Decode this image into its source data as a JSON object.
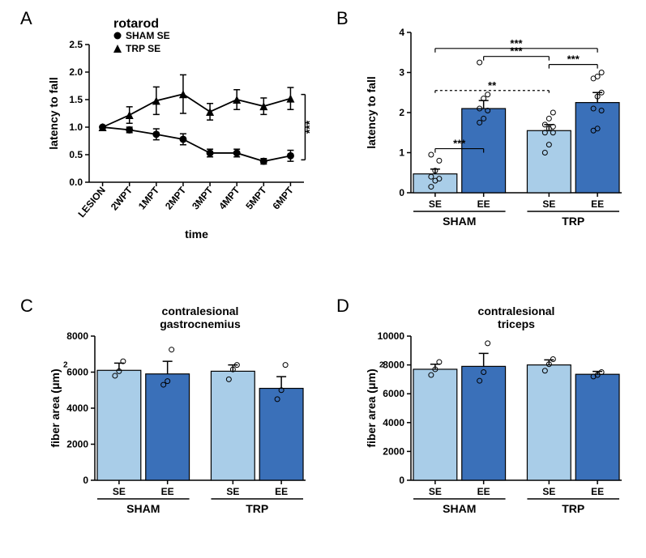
{
  "colors": {
    "se_fill": "#a9cde8",
    "ee_fill": "#3a70b9",
    "axis": "#000000",
    "bg": "#ffffff",
    "scatter": "#333333"
  },
  "panelA": {
    "label": "A",
    "title": "rotarod",
    "xlabel": "time",
    "ylabel": "latency to fall",
    "legend": [
      "SHAM SE",
      "TRP SE"
    ],
    "ylim": [
      0,
      2.5
    ],
    "ytick_step": 0.5,
    "x_categories": [
      "LESION",
      "2WPT",
      "1MPT",
      "2MPT",
      "3MPT",
      "4MPT",
      "5MPT",
      "6MPT"
    ],
    "series": [
      {
        "name": "SHAM SE",
        "marker": "circle",
        "y": [
          1.0,
          0.95,
          0.87,
          0.78,
          0.53,
          0.53,
          0.38,
          0.48
        ],
        "err": [
          0,
          0.05,
          0.1,
          0.1,
          0.07,
          0.07,
          0.05,
          0.1
        ]
      },
      {
        "name": "TRP SE",
        "marker": "triangle",
        "y": [
          1.0,
          1.22,
          1.48,
          1.6,
          1.28,
          1.5,
          1.38,
          1.52
        ],
        "err": [
          0,
          0.15,
          0.25,
          0.35,
          0.15,
          0.18,
          0.15,
          0.2
        ]
      }
    ],
    "sig": {
      "label": "***"
    },
    "title_fontsize": 16,
    "label_fontsize": 14,
    "tick_fontsize": 12
  },
  "panelB": {
    "label": "B",
    "xlabel_groups": [
      "SHAM",
      "TRP"
    ],
    "sub_labels": [
      "SE",
      "EE",
      "SE",
      "EE"
    ],
    "ylabel": "latency to fall",
    "ylim": [
      0,
      4
    ],
    "ytick_step": 1,
    "bars": [
      {
        "name": "SHAM SE",
        "value": 0.47,
        "err": 0.12,
        "fill": "se",
        "points": [
          0.15,
          0.3,
          0.35,
          0.4,
          0.55,
          0.8,
          0.95
        ]
      },
      {
        "name": "SHAM EE",
        "value": 2.1,
        "err": 0.2,
        "fill": "ee",
        "points": [
          1.75,
          1.85,
          2.05,
          2.1,
          2.35,
          2.45,
          3.25
        ]
      },
      {
        "name": "TRP SE",
        "value": 1.55,
        "err": 0.15,
        "fill": "se",
        "points": [
          1.0,
          1.2,
          1.5,
          1.5,
          1.6,
          1.65,
          1.7,
          1.85,
          2.0
        ]
      },
      {
        "name": "TRP EE",
        "value": 2.25,
        "err": 0.25,
        "fill": "ee",
        "points": [
          1.55,
          1.6,
          2.05,
          2.1,
          2.4,
          2.5,
          2.85,
          2.9,
          3.0
        ]
      }
    ],
    "sigs": [
      {
        "from": 0,
        "to": 1,
        "y": 1.1,
        "label": "***",
        "style": "solid"
      },
      {
        "from": 0,
        "to": 2,
        "y": 2.55,
        "label": "**",
        "style": "dashed"
      },
      {
        "from": 0,
        "to": 3,
        "y": 3.6,
        "label": "***",
        "style": "solid"
      },
      {
        "from": 1,
        "to": 2,
        "y": 3.4,
        "label": "***",
        "style": "solid"
      },
      {
        "from": 2,
        "to": 3,
        "y": 3.2,
        "label": "***",
        "style": "solid"
      }
    ],
    "title_fontsize": 14,
    "label_fontsize": 14,
    "tick_fontsize": 12
  },
  "panelC": {
    "label": "C",
    "title_lines": [
      "contralesional",
      "gastrocnemius"
    ],
    "ylabel": "fiber area (μm)",
    "ylabel_sup": "2",
    "ylim": [
      0,
      8000
    ],
    "ytick_step": 2000,
    "xlabel_groups": [
      "SHAM",
      "TRP"
    ],
    "sub_labels": [
      "SE",
      "EE",
      "SE",
      "EE"
    ],
    "bars": [
      {
        "name": "SHAM SE",
        "value": 6100,
        "err": 400,
        "fill": "se",
        "points": [
          5800,
          6050,
          6600
        ]
      },
      {
        "name": "SHAM EE",
        "value": 5900,
        "err": 700,
        "fill": "ee",
        "points": [
          5300,
          5500,
          7250
        ]
      },
      {
        "name": "TRP SE",
        "value": 6050,
        "err": 350,
        "fill": "se",
        "points": [
          5600,
          6150,
          6400
        ]
      },
      {
        "name": "TRP EE",
        "value": 5100,
        "err": 650,
        "fill": "ee",
        "points": [
          4500,
          5000,
          6400
        ]
      }
    ],
    "title_fontsize": 14,
    "label_fontsize": 14,
    "tick_fontsize": 12
  },
  "panelD": {
    "label": "D",
    "title_lines": [
      "contralesional",
      "triceps"
    ],
    "ylabel": "fiber area (μm)",
    "ylabel_sup": "2",
    "ylim": [
      0,
      10000
    ],
    "ytick_step": 2000,
    "xlabel_groups": [
      "SHAM",
      "TRP"
    ],
    "sub_labels": [
      "SE",
      "EE",
      "SE",
      "EE"
    ],
    "bars": [
      {
        "name": "SHAM SE",
        "value": 7700,
        "err": 350,
        "fill": "se",
        "points": [
          7300,
          7700,
          8200
        ]
      },
      {
        "name": "SHAM EE",
        "value": 7900,
        "err": 900,
        "fill": "ee",
        "points": [
          6900,
          7500,
          9500
        ]
      },
      {
        "name": "TRP SE",
        "value": 8000,
        "err": 350,
        "fill": "se",
        "points": [
          7600,
          8050,
          8400
        ]
      },
      {
        "name": "TRP EE",
        "value": 7350,
        "err": 200,
        "fill": "ee",
        "points": [
          7200,
          7300,
          7500
        ]
      }
    ],
    "title_fontsize": 14,
    "label_fontsize": 14,
    "tick_fontsize": 12
  }
}
